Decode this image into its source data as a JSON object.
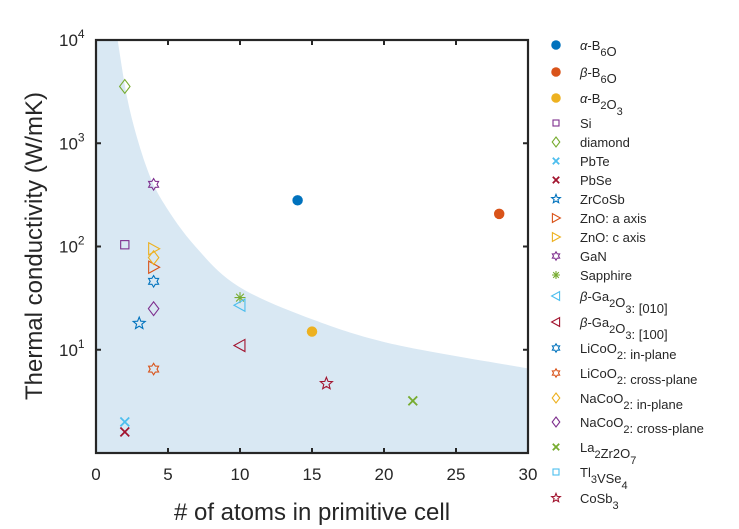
{
  "chart_data": {
    "type": "scatter",
    "title": "",
    "xlabel": "# of atoms in primitive cell",
    "ylabel": "Thermal conductivity (W/mK)",
    "xlim": [
      0,
      30
    ],
    "ylim": [
      1,
      10000
    ],
    "yscale": "log",
    "grid": false,
    "x_ticks": [
      0,
      5,
      10,
      15,
      20,
      25,
      30
    ],
    "x_tick_labels": [
      "0",
      "5",
      "10",
      "15",
      "20",
      "25",
      "30"
    ],
    "y_ticks": [
      10,
      100,
      1000,
      10000
    ],
    "y_tick_labels": [
      {
        "base": "10",
        "exp": "1"
      },
      {
        "base": "10",
        "exp": "2"
      },
      {
        "base": "10",
        "exp": "3"
      },
      {
        "base": "10",
        "exp": "4"
      }
    ],
    "legend_position": "outside-right",
    "shaded_region": {
      "label": "",
      "color": "#d9e8f3",
      "boundary": [
        [
          1.5,
          10000
        ],
        [
          2.3,
          2240
        ],
        [
          3.5,
          590
        ],
        [
          4.7,
          263
        ],
        [
          6.9,
          100
        ],
        [
          9.9,
          41
        ],
        [
          15.1,
          19.5
        ],
        [
          20.8,
          11.2
        ],
        [
          30,
          6.6
        ]
      ]
    },
    "series": [
      {
        "name": "α-B6O",
        "label_parts": [
          [
            "α",
            ""
          ],
          [
            "-B",
            ""
          ],
          [
            "6",
            "sub"
          ],
          [
            "O",
            ""
          ]
        ],
        "marker": "filled-circle",
        "color": "#0072bd",
        "x": [
          14
        ],
        "y": [
          280
        ]
      },
      {
        "name": "β-B6O",
        "label_parts": [
          [
            "β",
            ""
          ],
          [
            "-B",
            ""
          ],
          [
            "6",
            "sub"
          ],
          [
            "O",
            ""
          ]
        ],
        "marker": "filled-circle",
        "color": "#d95319",
        "x": [
          28
        ],
        "y": [
          207
        ]
      },
      {
        "name": "α-B2O3",
        "label_parts": [
          [
            "α",
            ""
          ],
          [
            "-B",
            ""
          ],
          [
            "2",
            "sub"
          ],
          [
            "O",
            ""
          ],
          [
            "3",
            "sub"
          ]
        ],
        "marker": "filled-circle",
        "color": "#edb120",
        "x": [
          15
        ],
        "y": [
          15
        ]
      },
      {
        "name": "Si",
        "label_parts": [
          [
            "Si",
            ""
          ]
        ],
        "marker": "square",
        "color": "#7e2f8e",
        "x": [
          2
        ],
        "y": [
          104
        ]
      },
      {
        "name": "diamond",
        "label_parts": [
          [
            "diamond",
            ""
          ]
        ],
        "marker": "diamond",
        "color": "#77ac30",
        "x": [
          2
        ],
        "y": [
          3550
        ]
      },
      {
        "name": "PbTe",
        "label_parts": [
          [
            "PbTe",
            ""
          ]
        ],
        "marker": "x",
        "color": "#4dbeee",
        "x": [
          2
        ],
        "y": [
          2.0
        ]
      },
      {
        "name": "PbSe",
        "label_parts": [
          [
            "PbSe",
            ""
          ]
        ],
        "marker": "x",
        "color": "#a2142f",
        "x": [
          2
        ],
        "y": [
          1.6
        ]
      },
      {
        "name": "ZrCoSb",
        "label_parts": [
          [
            "ZrCoSb",
            ""
          ]
        ],
        "marker": "pentagram",
        "color": "#0072bd",
        "x": [
          3
        ],
        "y": [
          18
        ]
      },
      {
        "name": "ZnO: a axis",
        "label_parts": [
          [
            "ZnO: a axis",
            ""
          ]
        ],
        "marker": "triangle-right",
        "color": "#d95319",
        "x": [
          4
        ],
        "y": [
          63
        ]
      },
      {
        "name": "ZnO: c axis",
        "label_parts": [
          [
            "ZnO: c axis",
            ""
          ]
        ],
        "marker": "triangle-right",
        "color": "#edb120",
        "x": [
          4
        ],
        "y": [
          95
        ]
      },
      {
        "name": "GaN",
        "label_parts": [
          [
            "GaN",
            ""
          ]
        ],
        "marker": "hexagram",
        "color": "#7e2f8e",
        "x": [
          4
        ],
        "y": [
          400
        ]
      },
      {
        "name": "Sapphire",
        "label_parts": [
          [
            "Sapphire",
            ""
          ]
        ],
        "marker": "asterisk",
        "color": "#77ac30",
        "x": [
          10
        ],
        "y": [
          32
        ]
      },
      {
        "name": "β-Ga2O3: [010]",
        "label_parts": [
          [
            "β",
            ""
          ],
          [
            "-Ga",
            ""
          ],
          [
            "2",
            "sub"
          ],
          [
            "O",
            ""
          ],
          [
            "3",
            "sub"
          ],
          [
            ": [010]",
            ""
          ]
        ],
        "marker": "triangle-left",
        "color": "#4dbeee",
        "x": [
          10
        ],
        "y": [
          27
        ]
      },
      {
        "name": "β-Ga2O3: [100]",
        "label_parts": [
          [
            "β",
            ""
          ],
          [
            "-Ga",
            ""
          ],
          [
            "2",
            "sub"
          ],
          [
            "O",
            ""
          ],
          [
            "3",
            "sub"
          ],
          [
            ": [100]",
            ""
          ]
        ],
        "marker": "triangle-left",
        "color": "#a2142f",
        "x": [
          10
        ],
        "y": [
          11
        ]
      },
      {
        "name": "LiCoO2: in-plane",
        "label_parts": [
          [
            "LiCoO",
            ""
          ],
          [
            "2",
            "sub"
          ],
          [
            ": in-plane",
            ""
          ]
        ],
        "marker": "hexagram",
        "color": "#0072bd",
        "x": [
          4
        ],
        "y": [
          46
        ]
      },
      {
        "name": "LiCoO2: cross-plane",
        "label_parts": [
          [
            "LiCoO",
            ""
          ],
          [
            "2",
            "sub"
          ],
          [
            ": cross-plane",
            ""
          ]
        ],
        "marker": "hexagram",
        "color": "#d95319",
        "x": [
          4
        ],
        "y": [
          6.5
        ]
      },
      {
        "name": "NaCoO2: in-plane",
        "label_parts": [
          [
            "NaCoO",
            ""
          ],
          [
            "2",
            "sub"
          ],
          [
            ": in-plane",
            ""
          ]
        ],
        "marker": "diamond",
        "color": "#edb120",
        "x": [
          4
        ],
        "y": [
          78
        ]
      },
      {
        "name": "NaCoO2: cross-plane",
        "label_parts": [
          [
            "NaCoO",
            ""
          ],
          [
            "2",
            "sub"
          ],
          [
            ": cross-plane",
            ""
          ]
        ],
        "marker": "diamond",
        "color": "#7e2f8e",
        "x": [
          4
        ],
        "y": [
          25
        ]
      },
      {
        "name": "La2Zr2O7",
        "label_parts": [
          [
            "La",
            ""
          ],
          [
            "2",
            "sub"
          ],
          [
            "Zr2O",
            ""
          ],
          [
            "7",
            "sub"
          ]
        ],
        "marker": "x",
        "color": "#77ac30",
        "x": [
          22
        ],
        "y": [
          3.2
        ]
      },
      {
        "name": "Tl3VSe4",
        "label_parts": [
          [
            "Tl",
            ""
          ],
          [
            "3",
            "sub"
          ],
          [
            "VSe",
            ""
          ],
          [
            "4",
            "sub"
          ]
        ],
        "marker": "square",
        "color": "#4dbeee",
        "x": [],
        "y": []
      },
      {
        "name": "CoSb3",
        "label_parts": [
          [
            "CoSb",
            ""
          ],
          [
            "3",
            "sub"
          ]
        ],
        "marker": "pentagram",
        "color": "#a2142f",
        "x": [
          16
        ],
        "y": [
          4.7
        ]
      }
    ]
  }
}
